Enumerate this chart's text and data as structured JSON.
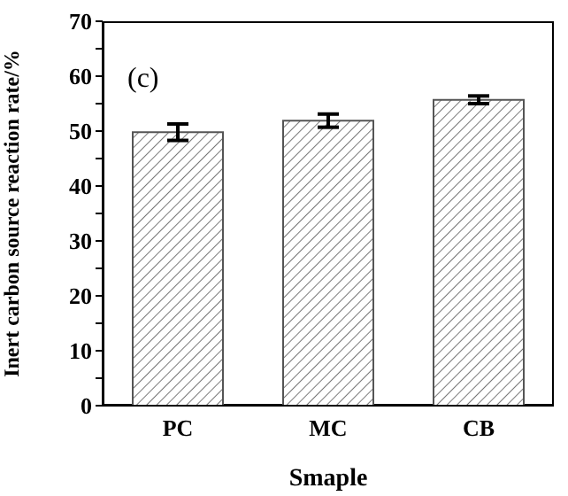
{
  "chart_data": {
    "type": "bar",
    "xlabel": "Smaple",
    "ylabel": "Inert carbon source reaction rate/%",
    "categories": [
      "PC",
      "MC",
      "CB"
    ],
    "values": [
      49.8,
      51.9,
      55.7
    ],
    "errors": [
      1.5,
      1.2,
      0.7
    ],
    "color": "#555555",
    "ylim": [
      0,
      70
    ],
    "yticks": [
      0,
      {
        "value": 5,
        "label": null
      },
      10,
      {
        "value": 15,
        "label": null
      },
      20,
      {
        "value": 25,
        "label": null
      },
      30,
      {
        "value": 35,
        "label": null
      },
      40,
      {
        "value": 45,
        "label": null
      },
      50,
      {
        "value": 55,
        "label": null
      },
      60,
      {
        "value": 65,
        "label": null
      },
      70
    ],
    "annotations": [
      "(c)"
    ],
    "grid": false,
    "legend": false
  }
}
